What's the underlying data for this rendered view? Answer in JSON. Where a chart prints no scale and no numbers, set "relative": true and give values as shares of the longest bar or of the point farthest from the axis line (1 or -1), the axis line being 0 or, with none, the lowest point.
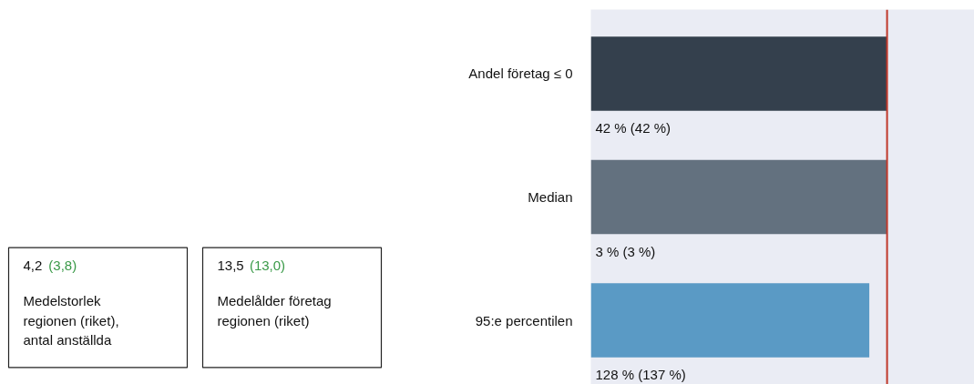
{
  "chart_data": [
    {
      "type": "other",
      "annotations": [
        "4,2",
        "(3,8)",
        "Medelstorlek regionen (riket), antal anställda",
        "13,5",
        "(13,0)",
        "Medelålder företag regionen (riket)"
      ]
    },
    {
      "type": "bar",
      "orientation": "horizontal",
      "relative": true,
      "categories": [
        "Andel företag ≤ 0",
        "Median",
        "95:e percentilen"
      ],
      "values": [
        1,
        1,
        0.94
      ],
      "colors": [
        "#34404d",
        "#63717f",
        "#5a9ac5"
      ],
      "annotations": [
        "42 % (42 %)",
        "3 % (3 %)",
        "128 % (137 %)"
      ],
      "ref_lines": [
        {
          "axis": "x",
          "value": 1,
          "color": "#c0392b"
        }
      ]
    }
  ]
}
